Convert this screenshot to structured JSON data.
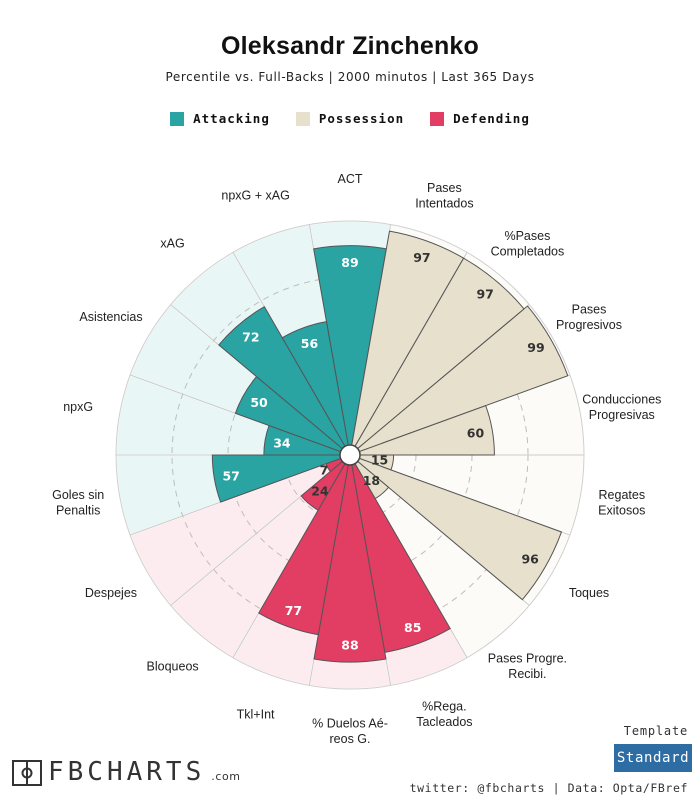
{
  "header": {
    "title": "Oleksandr Zinchenko",
    "subtitle": "Percentile vs. Full-Backs | 2000 minutos | Last 365 Days"
  },
  "legend": [
    {
      "label": "Attacking",
      "color": "#2aa3a3"
    },
    {
      "label": "Possession",
      "color": "#e6e0cc"
    },
    {
      "label": "Defending",
      "color": "#e23d63"
    }
  ],
  "footer": {
    "brand": "FBCHARTS",
    "brand_suffix": ".com",
    "credit": "twitter: @fbcharts | Data: Opta/FBref",
    "template_label": "Template",
    "template_button": "Standard"
  },
  "chart_data": {
    "type": "radial-bar",
    "rlim": [
      0,
      100
    ],
    "groups": [
      "Attacking",
      "Possession",
      "Defending"
    ],
    "colors": {
      "Attacking": "#2aa3a3",
      "Possession": "#e6e0cc",
      "Defending": "#e23d63"
    },
    "background_colors": {
      "Attacking": "#e9f6f6",
      "Possession": "#fcfbf7",
      "Defending": "#fdecef"
    },
    "categories": [
      {
        "label": "ACT",
        "group": "Attacking",
        "value": 89
      },
      {
        "label": "Pases\nIntentados",
        "group": "Possession",
        "value": 97
      },
      {
        "label": "%Pases\nCompletados",
        "group": "Possession",
        "value": 97
      },
      {
        "label": "Pases\nProgresivos",
        "group": "Possession",
        "value": 99
      },
      {
        "label": "Conducciones\nProgresivas",
        "group": "Possession",
        "value": 60
      },
      {
        "label": "Regates\nExitosos",
        "group": "Possession",
        "value": 15
      },
      {
        "label": "Toques",
        "group": "Possession",
        "value": 96
      },
      {
        "label": "Pases Progre.\nRecibi.",
        "group": "Possession",
        "value": 18
      },
      {
        "label": "%Rega.\nTacleados",
        "group": "Defending",
        "value": 85
      },
      {
        "label": "% Duelos Aé-\nreos G.",
        "group": "Defending",
        "value": 88
      },
      {
        "label": "Tkl+Int",
        "group": "Defending",
        "value": 77
      },
      {
        "label": "Bloqueos",
        "group": "Defending",
        "value": 24
      },
      {
        "label": "Despejes",
        "group": "Defending",
        "value": 7
      },
      {
        "label": "Goles sin\nPenaltis",
        "group": "Attacking",
        "value": 57
      },
      {
        "label": "npxG",
        "group": "Attacking",
        "value": 34
      },
      {
        "label": "Asistencias",
        "group": "Attacking",
        "value": 50
      },
      {
        "label": "xAG",
        "group": "Attacking",
        "value": 72
      },
      {
        "label": "npxG + xAG",
        "group": "Attacking",
        "value": 56
      }
    ]
  }
}
